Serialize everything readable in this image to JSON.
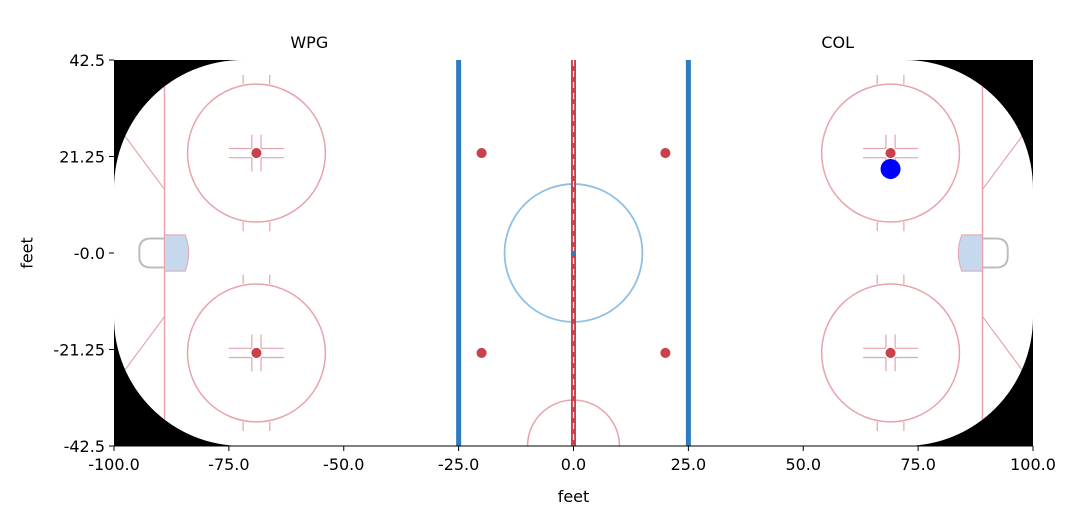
{
  "chart_data": {
    "type": "scatter",
    "title_left": "WPG",
    "title_right": "COL",
    "xlabel": "feet",
    "ylabel": "feet",
    "xlim": [
      -100,
      100
    ],
    "ylim": [
      -42.5,
      42.5
    ],
    "xticks": [
      -100,
      -75,
      -50,
      -25,
      0,
      25,
      50,
      75,
      100
    ],
    "xtick_labels": [
      "-100.0",
      "-75.0",
      "-50.0",
      "-25.0",
      "0.0",
      "25.0",
      "50.0",
      "75.0",
      "100.0"
    ],
    "yticks": [
      42.5,
      21.25,
      0,
      -21.25,
      -42.5
    ],
    "ytick_labels": [
      "42.5",
      "21.25",
      "-0.0",
      "-21.25",
      "-42.5"
    ],
    "grid": false,
    "points": [
      {
        "x": 69,
        "y": 18.5
      }
    ],
    "colors": {
      "point": "#0000ff",
      "red_line": "#c8414b",
      "red_light": "#e8a3ab",
      "blue_line": "#2e7bc0",
      "center_circle": "#8fc0e6",
      "crease": "#c5d8ee",
      "net": "#bdbdbd"
    }
  }
}
